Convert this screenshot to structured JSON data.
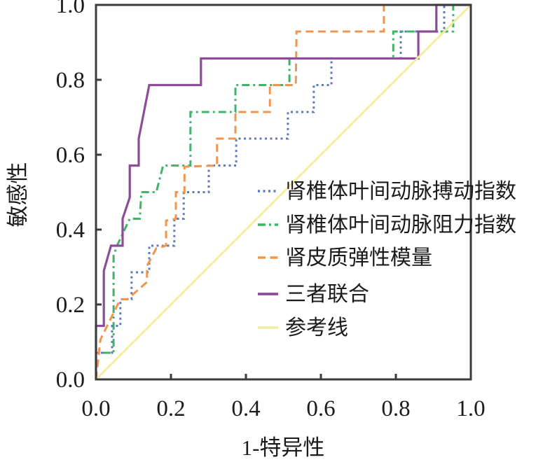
{
  "figure": {
    "background": "#ffffff",
    "axis_color": "#3b3b3b",
    "text_color": "#1b1b1b"
  },
  "axes": {
    "x_title": "1-特异性",
    "y_title": "敏感性",
    "x_tick_labels": [
      "0.0",
      "0.2",
      "0.4",
      "0.6",
      "0.8",
      "1.0"
    ],
    "y_tick_labels": [
      "0.0",
      "0.2",
      "0.4",
      "0.6",
      "0.8",
      "1.0"
    ]
  },
  "chart_data": {
    "type": "line",
    "subtype": "roc-curve",
    "title": "",
    "xlabel": "1-特异性",
    "ylabel": "敏感性",
    "xlim": [
      0,
      1
    ],
    "ylim": [
      0,
      1
    ],
    "x_ticks": [
      0,
      0.2,
      0.4,
      0.6,
      0.8,
      1.0
    ],
    "y_ticks": [
      0,
      0.2,
      0.4,
      0.6,
      0.8,
      1.0
    ],
    "grid": false,
    "legend_position": "center-right",
    "series": [
      {
        "name": "肾椎体叶间动脉搏动指数",
        "color": "#5b7abe",
        "line_style": "dotted",
        "dash": "3 4.5",
        "width": 3,
        "points": [
          [
            0,
            0
          ],
          [
            0,
            0.071
          ],
          [
            0.043,
            0.071
          ],
          [
            0.043,
            0.143
          ],
          [
            0.065,
            0.143
          ],
          [
            0.065,
            0.214
          ],
          [
            0.095,
            0.214
          ],
          [
            0.095,
            0.286
          ],
          [
            0.142,
            0.286
          ],
          [
            0.142,
            0.357
          ],
          [
            0.209,
            0.357
          ],
          [
            0.209,
            0.429
          ],
          [
            0.234,
            0.429
          ],
          [
            0.234,
            0.5
          ],
          [
            0.301,
            0.5
          ],
          [
            0.301,
            0.571
          ],
          [
            0.374,
            0.571
          ],
          [
            0.374,
            0.643
          ],
          [
            0.512,
            0.643
          ],
          [
            0.512,
            0.714
          ],
          [
            0.581,
            0.714
          ],
          [
            0.581,
            0.786
          ],
          [
            0.628,
            0.786
          ],
          [
            0.628,
            0.857
          ],
          [
            0.813,
            0.857
          ],
          [
            0.813,
            0.929
          ],
          [
            0.929,
            0.929
          ],
          [
            0.929,
            1
          ],
          [
            1,
            1
          ]
        ]
      },
      {
        "name": "肾椎体叶间动脉阻力指数",
        "color": "#3eb466",
        "line_style": "dash-dot",
        "dash": "11 5 3 5",
        "width": 3,
        "points": [
          [
            0,
            0
          ],
          [
            0,
            0.071
          ],
          [
            0.047,
            0.071
          ],
          [
            0.047,
            0.33
          ],
          [
            0.056,
            0.357
          ],
          [
            0.09,
            0.429
          ],
          [
            0.117,
            0.429
          ],
          [
            0.121,
            0.5
          ],
          [
            0.161,
            0.5
          ],
          [
            0.179,
            0.571
          ],
          [
            0.252,
            0.571
          ],
          [
            0.252,
            0.714
          ],
          [
            0.372,
            0.714
          ],
          [
            0.372,
            0.786
          ],
          [
            0.516,
            0.786
          ],
          [
            0.516,
            0.857
          ],
          [
            0.793,
            0.857
          ],
          [
            0.793,
            0.929
          ],
          [
            0.953,
            0.929
          ],
          [
            0.953,
            1
          ],
          [
            1,
            1
          ]
        ]
      },
      {
        "name": "肾皮质弹性模量",
        "color": "#f0954f",
        "line_style": "dashed",
        "dash": "11 6.5",
        "width": 3,
        "points": [
          [
            0,
            0
          ],
          [
            0.012,
            0.107
          ],
          [
            0.065,
            0.214
          ],
          [
            0.084,
            0.214
          ],
          [
            0.136,
            0.26
          ],
          [
            0.136,
            0.303
          ],
          [
            0.161,
            0.35
          ],
          [
            0.187,
            0.357
          ],
          [
            0.187,
            0.424
          ],
          [
            0.213,
            0.429
          ],
          [
            0.213,
            0.5
          ],
          [
            0.236,
            0.5
          ],
          [
            0.236,
            0.568
          ],
          [
            0.323,
            0.571
          ],
          [
            0.323,
            0.643
          ],
          [
            0.372,
            0.643
          ],
          [
            0.372,
            0.714
          ],
          [
            0.464,
            0.714
          ],
          [
            0.464,
            0.786
          ],
          [
            0.533,
            0.786
          ],
          [
            0.535,
            0.929
          ],
          [
            0.768,
            0.929
          ],
          [
            0.768,
            1
          ],
          [
            1,
            1
          ]
        ]
      },
      {
        "name": "三者联合",
        "color": "#8c4c99",
        "line_style": "solid",
        "dash": "",
        "width": 3.2,
        "points": [
          [
            0,
            0
          ],
          [
            0,
            0.143
          ],
          [
            0.021,
            0.143
          ],
          [
            0.021,
            0.29
          ],
          [
            0.04,
            0.357
          ],
          [
            0.071,
            0.357
          ],
          [
            0.071,
            0.429
          ],
          [
            0.09,
            0.486
          ],
          [
            0.09,
            0.571
          ],
          [
            0.114,
            0.571
          ],
          [
            0.114,
            0.643
          ],
          [
            0.142,
            0.786
          ],
          [
            0.28,
            0.786
          ],
          [
            0.28,
            0.857
          ],
          [
            0.86,
            0.857
          ],
          [
            0.86,
            0.929
          ],
          [
            0.908,
            0.929
          ],
          [
            0.908,
            1
          ],
          [
            1,
            1
          ]
        ]
      },
      {
        "name": "参考线",
        "color": "#f3ec9e",
        "line_style": "solid",
        "dash": "",
        "width": 3,
        "points": [
          [
            0,
            0
          ],
          [
            1,
            1
          ]
        ]
      }
    ]
  }
}
